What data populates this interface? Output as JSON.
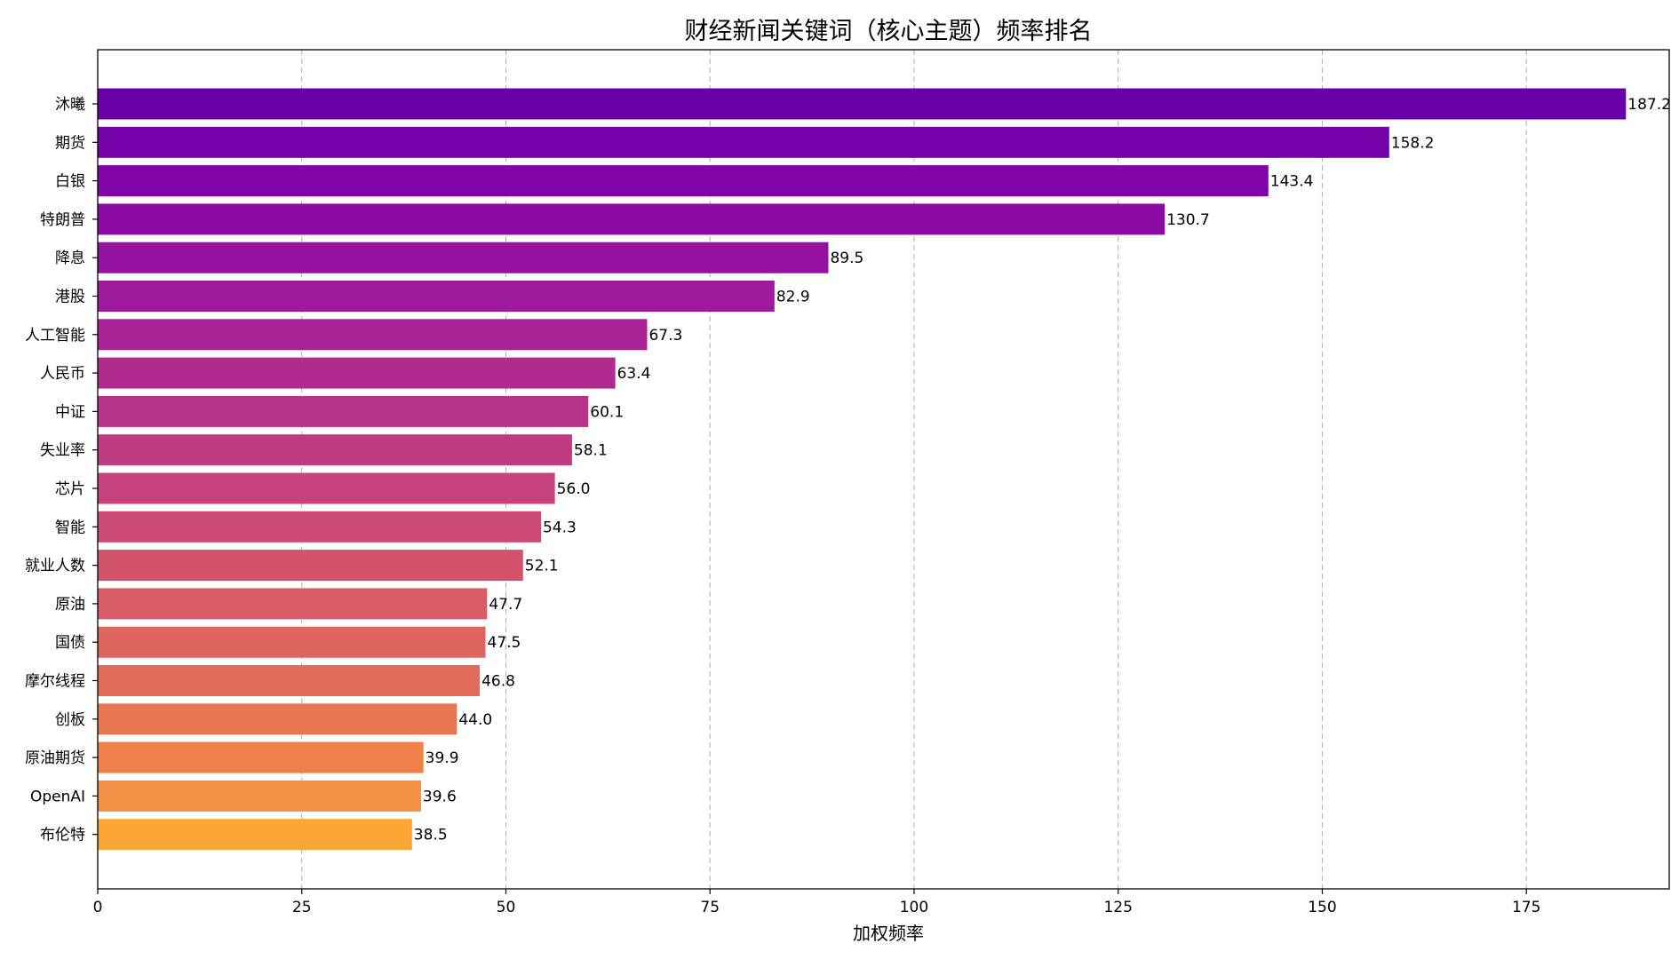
{
  "chart_data": {
    "type": "bar",
    "orientation": "horizontal",
    "title": "财经新闻关键词（核心主题）频率排名",
    "xlabel": "加权频率",
    "ylabel": "",
    "xlim": [
      0,
      192.5
    ],
    "xticks": [
      0,
      25,
      50,
      75,
      100,
      125,
      150,
      175
    ],
    "grid": "x-dashed",
    "categories": [
      "沐曦",
      "期货",
      "白银",
      "特朗普",
      "降息",
      "港股",
      "人工智能",
      "人民币",
      "中证",
      "失业率",
      "芯片",
      "智能",
      "就业人数",
      "原油",
      "国债",
      "摩尔线程",
      "创板",
      "原油期货",
      "OpenAI",
      "布伦特"
    ],
    "values": [
      187.2,
      158.2,
      143.4,
      130.7,
      89.5,
      82.9,
      67.3,
      63.4,
      60.1,
      58.1,
      56.0,
      54.3,
      52.1,
      47.7,
      47.5,
      46.8,
      44.0,
      39.9,
      39.6,
      38.5
    ],
    "value_labels": [
      "187.2",
      "158.2",
      "143.4",
      "130.7",
      "89.5",
      "82.9",
      "67.3",
      "63.4",
      "60.1",
      "58.1",
      "56.0",
      "54.3",
      "52.1",
      "47.7",
      "47.5",
      "46.8",
      "44.0",
      "39.9",
      "39.6",
      "38.5"
    ],
    "colors": [
      "#6a00a8",
      "#7501a8",
      "#8004a8",
      "#8b0aa5",
      "#9511a1",
      "#9f1a9b",
      "#a82296",
      "#b12a90",
      "#b8338a",
      "#c03a83",
      "#c7427c",
      "#cc4a74",
      "#d3536d",
      "#d85b66",
      "#de6460",
      "#e26c59",
      "#e87751",
      "#f0804a",
      "#f48f44",
      "#fca636"
    ]
  }
}
